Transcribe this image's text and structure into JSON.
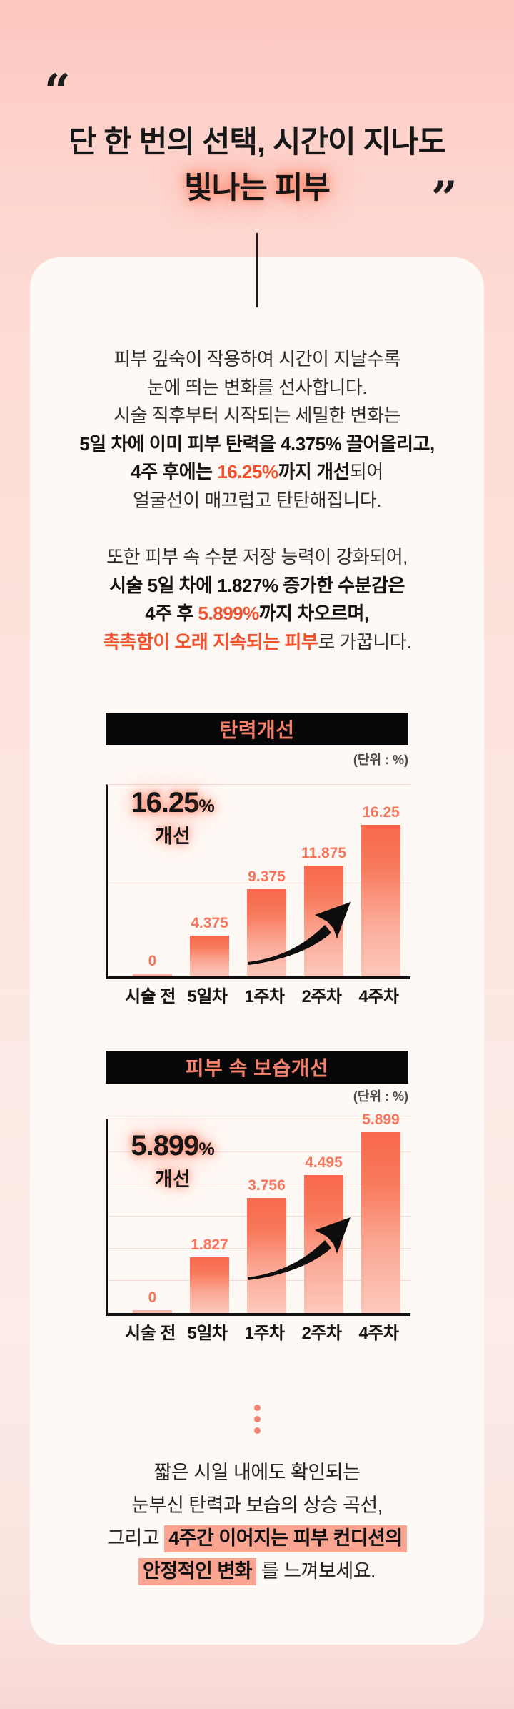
{
  "hero": {
    "open_quote": "“",
    "close_quote": "”",
    "title_line1": "단 한 번의 선택, 시간이 지나도",
    "title_line2": "빛나는 피부"
  },
  "intro": {
    "l1": "피부 깊숙이 작용하여 시간이 지날수록",
    "l2": "눈에 띄는 변화를 선사합니다.",
    "l3": "시술 직후부터 시작되는 세밀한 변화는",
    "l4": "5일 차에 이미 피부 탄력을 4.375% 끌어올리고,",
    "l5a": "4주 후에는 ",
    "l5b": "16.25%",
    "l5c": "까지 개선",
    "l5d": "되어",
    "l6": "얼굴선이 매끄럽고 탄탄해집니다.",
    "m1": "또한 피부 속 수분 저장 능력이 강화되어,",
    "m2": "시술 5일 차에 1.827% 증가한 수분감은",
    "m3a": "4주 후 ",
    "m3b": "5.899%",
    "m3c": "까지 차오르며,",
    "m4a": "촉촉함이 오래 지속되는 피부",
    "m4b": "로 가꿉니다."
  },
  "chart_data": [
    {
      "type": "bar",
      "title": "탄력개선",
      "unit_label": "(단위 : %)",
      "categories": [
        "시술 전",
        "5일차",
        "1주차",
        "2주차",
        "4주차"
      ],
      "values": [
        0,
        4.375,
        9.375,
        11.875,
        16.25
      ],
      "value_labels": [
        "0",
        "4.375",
        "9.375",
        "11.875",
        "16.25"
      ],
      "big": {
        "value": "16.25",
        "percent": "%",
        "caption": "개선"
      },
      "xlabel": "",
      "ylabel": "",
      "ylim": [
        0,
        20.5
      ],
      "grid_values": [
        10,
        20
      ],
      "legend": "none",
      "annotation": "upward swoosh arrow"
    },
    {
      "type": "bar",
      "title": "피부 속 보습개선",
      "unit_label": "(단위 : %)",
      "categories": [
        "시술 전",
        "5일차",
        "1주차",
        "2주차",
        "4주차"
      ],
      "values": [
        0,
        1.827,
        3.756,
        4.495,
        5.899
      ],
      "value_labels": [
        "0",
        "1.827",
        "3.756",
        "4.495",
        "5.899"
      ],
      "big": {
        "value": "5.899",
        "percent": "%",
        "caption": "개선"
      },
      "xlabel": "",
      "ylabel": "",
      "ylim": [
        0,
        6.3
      ],
      "grid_values": [
        1,
        2,
        3,
        4,
        5,
        6
      ],
      "legend": "none",
      "annotation": "upward swoosh arrow"
    }
  ],
  "outro": {
    "l1": "짧은 시일 내에도 확인되는",
    "l2": "눈부신 탄력과 보습의 상승 곡선,",
    "l3a": "그리고 ",
    "l3b": "4주간 이어지는 피부 컨디션의",
    "l4a": "안정적인 변화",
    "l4b": " 를 느껴보세요."
  },
  "colors": {
    "page_bg_top": "#fcc7bf",
    "page_bg_bottom": "#f8d7d3",
    "card_bg": "#fff9f5",
    "header_bar": "#070707",
    "header_text": "#f5806b",
    "accent_red": "#f3512e",
    "value_label": "#f8745b",
    "bar_top": "#f9694c",
    "bar_bottom": "#fcc9bc",
    "highlight": "#f9a592",
    "dots": "#f0836e"
  }
}
